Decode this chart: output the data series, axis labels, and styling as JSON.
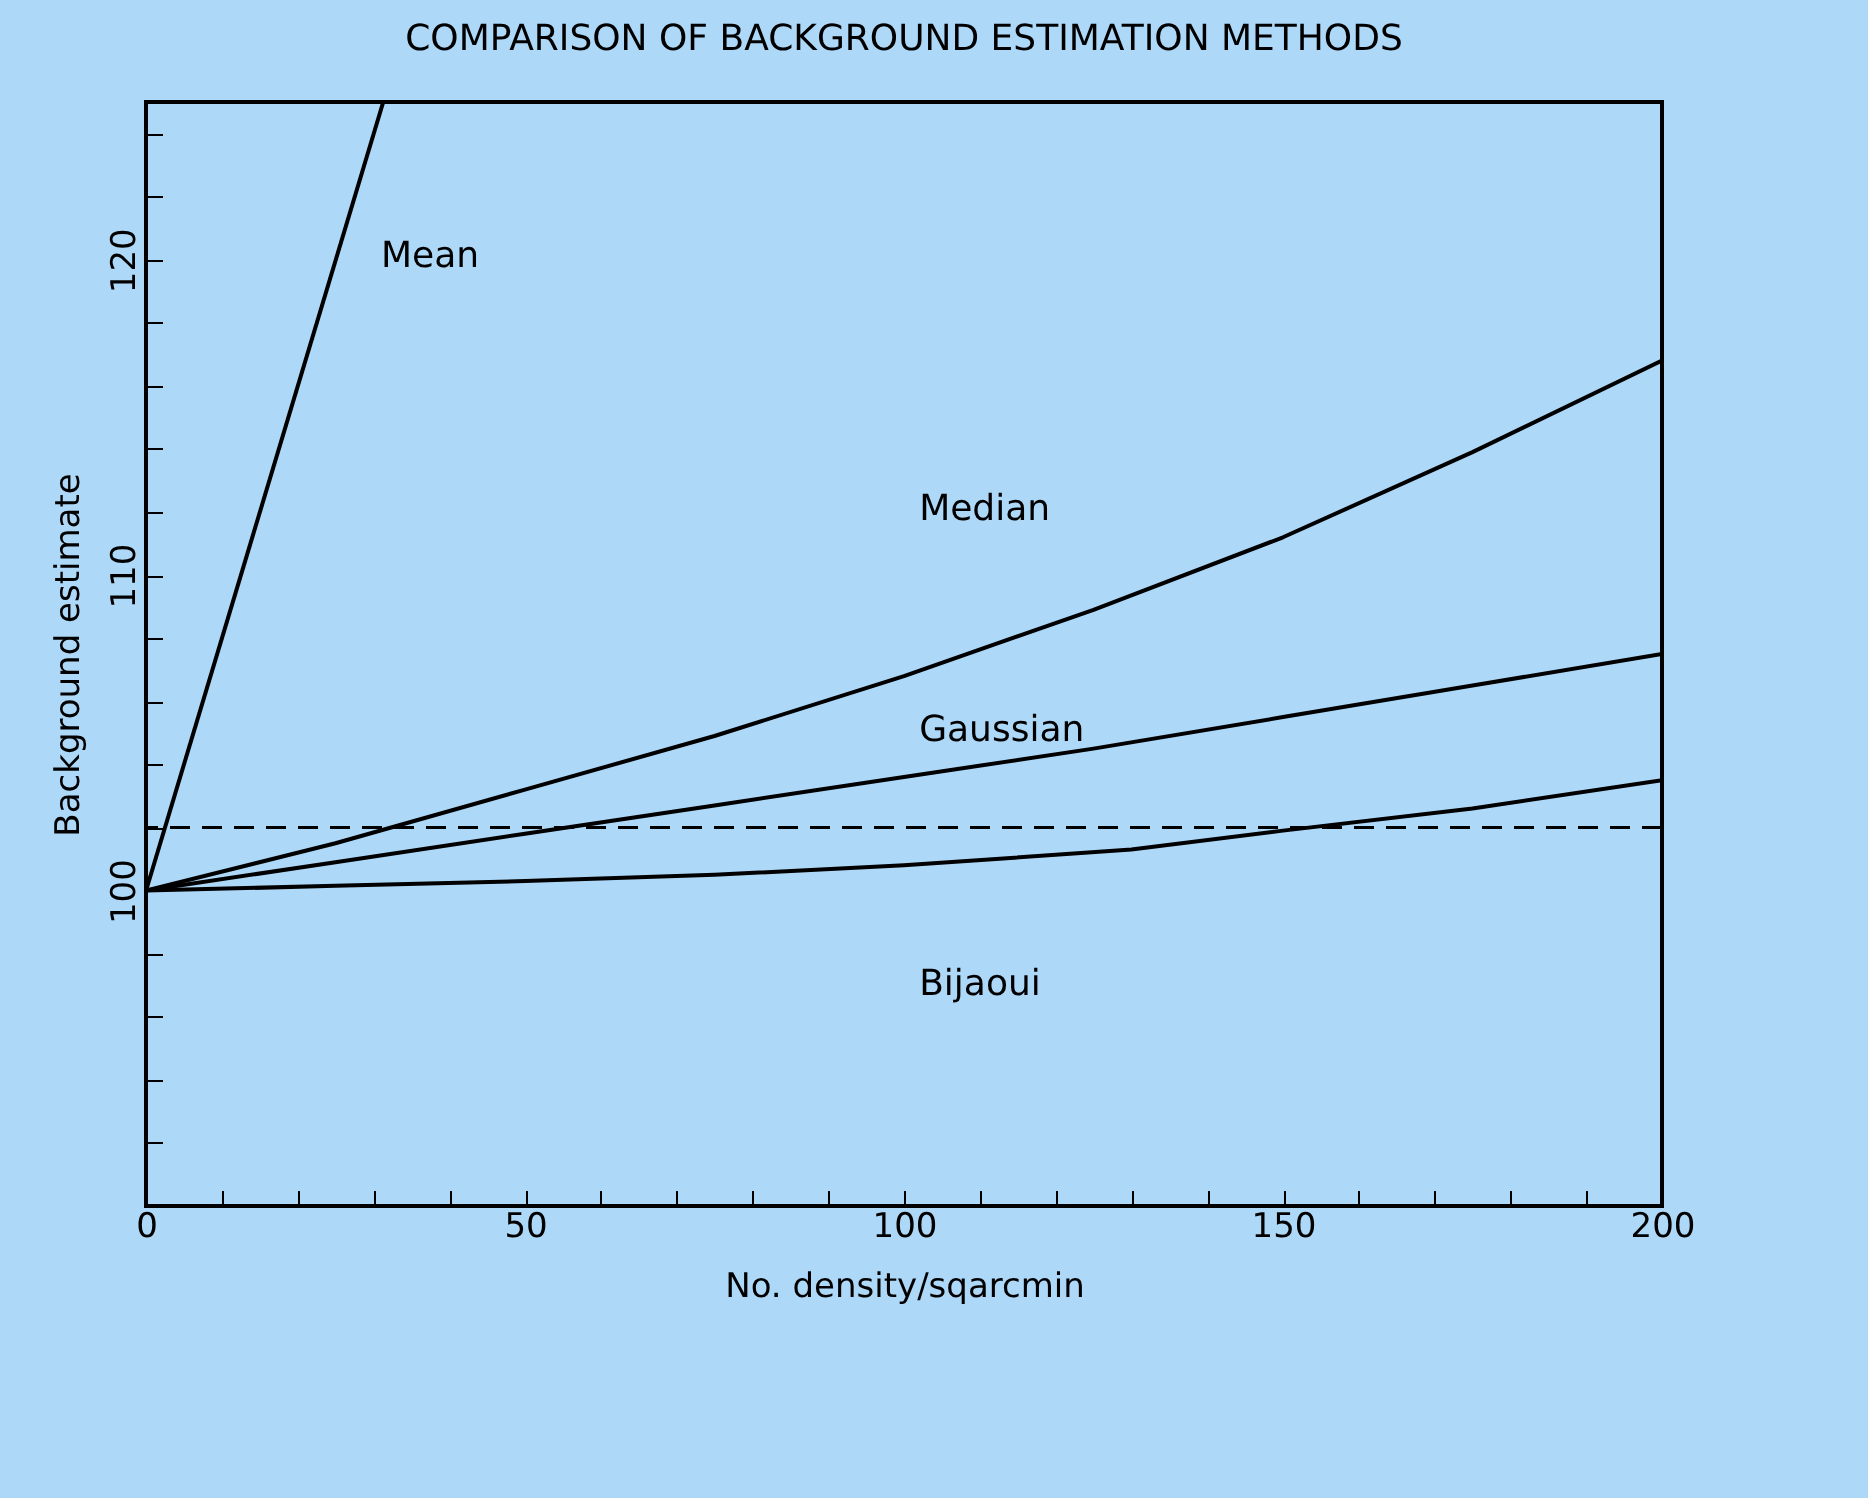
{
  "chart_data": {
    "type": "line",
    "title": "COMPARISON OF BACKGROUND ESTIMATION METHODS",
    "xlabel": "No. density/sqarcmin",
    "ylabel": "Background estimate",
    "xlim": [
      0,
      200
    ],
    "ylim": [
      90,
      125
    ],
    "xticks": [
      0,
      {
        "value": 10,
        "label": null
      },
      {
        "value": 20,
        "label": null
      },
      {
        "value": 30,
        "label": null
      },
      {
        "value": 40,
        "label": null
      },
      50,
      {
        "value": 60,
        "label": null
      },
      {
        "value": 70,
        "label": null
      },
      {
        "value": 80,
        "label": null
      },
      {
        "value": 90,
        "label": null
      },
      100,
      {
        "value": 110,
        "label": null
      },
      {
        "value": 120,
        "label": null
      },
      {
        "value": 130,
        "label": null
      },
      {
        "value": 140,
        "label": null
      },
      150,
      {
        "value": 160,
        "label": null
      },
      {
        "value": 170,
        "label": null
      },
      {
        "value": 180,
        "label": null
      },
      {
        "value": 190,
        "label": null
      },
      200
    ],
    "yticks": [
      {
        "value": 92,
        "label": null
      },
      {
        "value": 94,
        "label": null
      },
      {
        "value": 96,
        "label": null
      },
      {
        "value": 98,
        "label": null
      },
      100,
      {
        "value": 102,
        "label": null
      },
      {
        "value": 104,
        "label": null
      },
      {
        "value": 106,
        "label": null
      },
      {
        "value": 108,
        "label": null
      },
      110,
      {
        "value": 112,
        "label": null
      },
      {
        "value": 114,
        "label": null
      },
      {
        "value": 116,
        "label": null
      },
      {
        "value": 118,
        "label": null
      },
      120,
      {
        "value": 122,
        "label": null
      },
      {
        "value": 124,
        "label": null
      }
    ],
    "line_style": "solid",
    "grid": false,
    "legend": false,
    "series": [
      {
        "name": "Mean",
        "color": "#000000",
        "x": [
          0,
          31.3
        ],
        "values": [
          100,
          125
        ]
      },
      {
        "name": "Median",
        "color": "#000000",
        "x": [
          0,
          25,
          50,
          75,
          100,
          125,
          150,
          175,
          200
        ],
        "values": [
          100,
          101.5,
          103.2,
          104.9,
          106.8,
          108.9,
          111.2,
          113.9,
          116.8
        ]
      },
      {
        "name": "Gaussian",
        "color": "#000000",
        "x": [
          0,
          25,
          50,
          75,
          100,
          125,
          150,
          175,
          200
        ],
        "values": [
          100,
          100.9,
          101.8,
          102.7,
          103.6,
          104.5,
          105.5,
          106.5,
          107.5
        ]
      },
      {
        "name": "Bijaoui",
        "color": "#000000",
        "x": [
          0,
          25,
          50,
          75,
          100,
          130,
          150,
          175,
          200
        ],
        "values": [
          100,
          100.15,
          100.3,
          100.5,
          100.8,
          101.3,
          101.9,
          102.6,
          103.5
        ]
      }
    ],
    "ref_lines": [
      {
        "axis": "y",
        "value": 102,
        "line_style": "dashed",
        "color": "#000000"
      }
    ]
  }
}
